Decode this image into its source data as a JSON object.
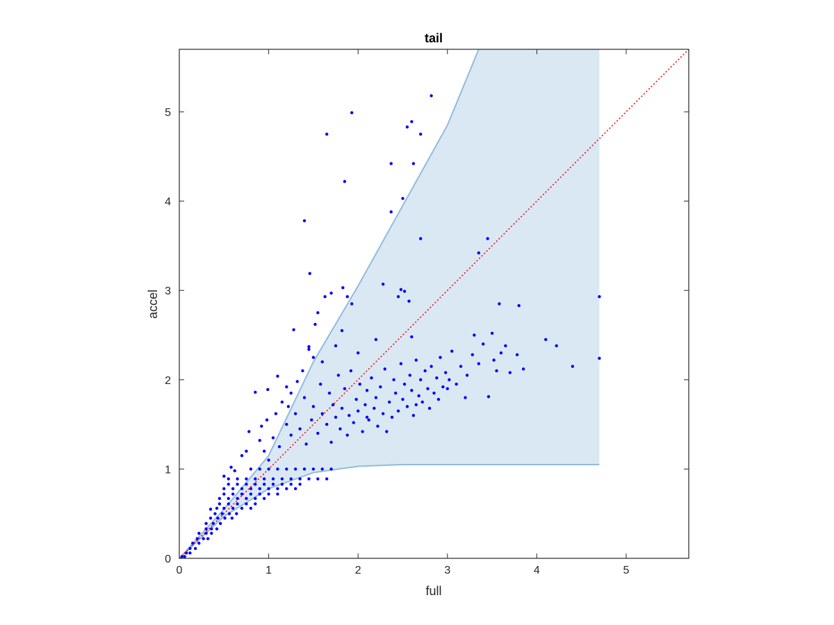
{
  "chart_data": {
    "type": "scatter",
    "title": "tail",
    "xlabel": "full",
    "ylabel": "accel",
    "xlim": [
      0,
      5.7
    ],
    "ylim": [
      0,
      5.7
    ],
    "xticks": [
      0,
      1,
      2,
      3,
      4,
      5
    ],
    "yticks": [
      0,
      1,
      2,
      3,
      4,
      5
    ],
    "grid": false,
    "colors": {
      "points": "#0000ff",
      "band_fill": "#dae8f3",
      "band_edge": "#8fbcdc",
      "reference_line": "#ff0000",
      "axes": "#262626"
    },
    "band": {
      "upper": [
        [
          0,
          0
        ],
        [
          0.5,
          0.55
        ],
        [
          1,
          1.15
        ],
        [
          1.5,
          2.2
        ],
        [
          2,
          3.05
        ],
        [
          2.5,
          3.95
        ],
        [
          3,
          4.85
        ],
        [
          3.35,
          5.7
        ],
        [
          4.7,
          5.7
        ]
      ],
      "lower": [
        [
          0,
          0
        ],
        [
          0.5,
          0.47
        ],
        [
          1,
          0.78
        ],
        [
          1.5,
          0.96
        ],
        [
          2,
          1.03
        ],
        [
          2.5,
          1.05
        ],
        [
          3,
          1.05
        ],
        [
          4.7,
          1.05
        ]
      ]
    },
    "reference_line": {
      "style": "dotted",
      "x": [
        0,
        5.7
      ],
      "y": [
        0,
        5.7
      ]
    },
    "series": [
      {
        "values": [
          [
            2.82,
            5.18
          ],
          [
            1.93,
            4.99
          ],
          [
            2.6,
            4.89
          ],
          [
            2.55,
            4.83
          ],
          [
            2.7,
            4.75
          ],
          [
            1.65,
            4.75
          ],
          [
            2.37,
            4.42
          ],
          [
            2.62,
            4.42
          ],
          [
            1.85,
            4.22
          ],
          [
            2.5,
            4.03
          ],
          [
            2.37,
            3.88
          ],
          [
            1.4,
            3.78
          ],
          [
            2.7,
            3.58
          ],
          [
            3.45,
            3.58
          ],
          [
            3.35,
            3.42
          ],
          [
            1.46,
            3.19
          ],
          [
            2.28,
            3.07
          ],
          [
            2.48,
            3.01
          ],
          [
            2.52,
            2.99
          ],
          [
            1.7,
            2.97
          ],
          [
            1.83,
            3.03
          ],
          [
            1.88,
            2.93
          ],
          [
            1.63,
            2.93
          ],
          [
            2.45,
            2.93
          ],
          [
            2.57,
            2.88
          ],
          [
            1.93,
            2.85
          ],
          [
            3.58,
            2.85
          ],
          [
            3.8,
            2.83
          ],
          [
            4.7,
            2.93
          ],
          [
            1.55,
            2.75
          ],
          [
            1.52,
            2.62
          ],
          [
            1.28,
            2.56
          ],
          [
            1.82,
            2.55
          ],
          [
            2.6,
            2.48
          ],
          [
            2.2,
            2.45
          ],
          [
            3.3,
            2.5
          ],
          [
            3.5,
            2.52
          ],
          [
            4.1,
            2.45
          ],
          [
            4.22,
            2.38
          ],
          [
            3.65,
            2.38
          ],
          [
            3.78,
            2.28
          ],
          [
            3.85,
            2.12
          ],
          [
            4.4,
            2.15
          ],
          [
            4.7,
            2.24
          ],
          [
            3.55,
            2.1
          ],
          [
            3.7,
            2.08
          ],
          [
            3.46,
            1.81
          ],
          [
            1.45,
            2.37
          ],
          [
            1.45,
            2.34
          ],
          [
            1.5,
            2.25
          ],
          [
            1.6,
            2.2
          ],
          [
            1.1,
            2.04
          ],
          [
            0.85,
            1.86
          ],
          [
            0.99,
            1.89
          ],
          [
            1.2,
            1.92
          ],
          [
            1.75,
            2.38
          ],
          [
            2.0,
            2.3
          ],
          [
            2.32,
            1.42
          ],
          [
            2.1,
            1.58
          ],
          [
            2.65,
            1.72
          ],
          [
            3.0,
            1.9
          ],
          [
            3.2,
            1.8
          ],
          [
            0.78,
            1.42
          ],
          [
            0.9,
            1.32
          ],
          [
            0.75,
            1.2
          ],
          [
            1.0,
            1.1
          ],
          [
            1.12,
            1.25
          ],
          [
            1.2,
            1.5
          ],
          [
            1.25,
            1.38
          ],
          [
            1.3,
            1.62
          ],
          [
            1.35,
            1.45
          ],
          [
            1.4,
            1.8
          ],
          [
            1.42,
            1.28
          ],
          [
            1.48,
            1.55
          ],
          [
            1.5,
            1.7
          ],
          [
            1.55,
            1.4
          ],
          [
            1.58,
            1.95
          ],
          [
            1.6,
            1.62
          ],
          [
            1.65,
            1.5
          ],
          [
            1.68,
            1.85
          ],
          [
            1.7,
            1.3
          ],
          [
            1.72,
            1.72
          ],
          [
            1.75,
            1.58
          ],
          [
            1.78,
            2.05
          ],
          [
            1.8,
            1.45
          ],
          [
            1.82,
            1.68
          ],
          [
            1.85,
            1.9
          ],
          [
            1.88,
            1.38
          ],
          [
            1.9,
            1.6
          ],
          [
            1.92,
            2.1
          ],
          [
            1.95,
            1.52
          ],
          [
            1.98,
            1.78
          ],
          [
            2.0,
            1.65
          ],
          [
            2.02,
            1.95
          ],
          [
            2.05,
            1.42
          ],
          [
            2.08,
            1.72
          ],
          [
            2.1,
            1.88
          ],
          [
            2.12,
            1.55
          ],
          [
            2.15,
            2.02
          ],
          [
            2.18,
            1.68
          ],
          [
            2.2,
            1.8
          ],
          [
            2.22,
            1.48
          ],
          [
            2.25,
            1.92
          ],
          [
            2.28,
            1.62
          ],
          [
            2.3,
            2.12
          ],
          [
            2.35,
            1.75
          ],
          [
            2.38,
            1.58
          ],
          [
            2.4,
            2.0
          ],
          [
            2.42,
            1.85
          ],
          [
            2.45,
            1.65
          ],
          [
            2.48,
            2.18
          ],
          [
            2.5,
            1.78
          ],
          [
            2.52,
            1.95
          ],
          [
            2.55,
            1.7
          ],
          [
            2.58,
            2.05
          ],
          [
            2.6,
            1.88
          ],
          [
            2.62,
            1.6
          ],
          [
            2.65,
            2.22
          ],
          [
            2.68,
            1.82
          ],
          [
            2.7,
            2.0
          ],
          [
            2.72,
            1.75
          ],
          [
            2.75,
            2.1
          ],
          [
            2.78,
            1.9
          ],
          [
            2.8,
            1.68
          ],
          [
            2.82,
            2.15
          ],
          [
            2.85,
            1.85
          ],
          [
            2.88,
            2.02
          ],
          [
            2.9,
            1.78
          ],
          [
            2.92,
            2.25
          ],
          [
            2.95,
            1.92
          ],
          [
            2.98,
            2.08
          ],
          [
            3.02,
            2.0
          ],
          [
            3.05,
            2.32
          ],
          [
            3.1,
            1.95
          ],
          [
            3.15,
            2.15
          ],
          [
            3.22,
            2.05
          ],
          [
            3.28,
            2.28
          ],
          [
            3.35,
            2.18
          ],
          [
            3.4,
            2.4
          ],
          [
            3.52,
            2.22
          ],
          [
            3.6,
            2.3
          ],
          [
            0.8,
            1.0
          ],
          [
            0.9,
            1.0
          ],
          [
            1.0,
            1.0
          ],
          [
            1.1,
            1.0
          ],
          [
            1.2,
            1.0
          ],
          [
            1.3,
            1.0
          ],
          [
            1.4,
            1.0
          ],
          [
            1.5,
            1.0
          ],
          [
            1.6,
            1.0
          ],
          [
            1.7,
            1.0
          ],
          [
            0.55,
            0.89
          ],
          [
            0.65,
            0.89
          ],
          [
            0.75,
            0.89
          ],
          [
            0.85,
            0.89
          ],
          [
            0.95,
            0.89
          ],
          [
            1.05,
            0.89
          ],
          [
            1.15,
            0.89
          ],
          [
            1.25,
            0.89
          ],
          [
            1.35,
            0.89
          ],
          [
            1.45,
            0.89
          ],
          [
            1.55,
            0.89
          ],
          [
            1.65,
            0.89
          ],
          [
            0.55,
            0.83
          ],
          [
            0.65,
            0.83
          ],
          [
            0.75,
            0.83
          ],
          [
            0.85,
            0.83
          ],
          [
            0.95,
            0.83
          ],
          [
            1.05,
            0.83
          ],
          [
            1.15,
            0.83
          ],
          [
            1.25,
            0.83
          ],
          [
            1.35,
            0.83
          ],
          [
            0.5,
            0.78
          ],
          [
            0.6,
            0.78
          ],
          [
            0.7,
            0.78
          ],
          [
            0.8,
            0.78
          ],
          [
            0.9,
            0.78
          ],
          [
            1.0,
            0.78
          ],
          [
            1.1,
            0.78
          ],
          [
            1.2,
            0.78
          ],
          [
            1.3,
            0.78
          ],
          [
            0.5,
            0.72
          ],
          [
            0.6,
            0.72
          ],
          [
            0.7,
            0.72
          ],
          [
            0.8,
            0.72
          ],
          [
            0.9,
            0.72
          ],
          [
            1.0,
            0.72
          ],
          [
            1.1,
            0.72
          ],
          [
            0.45,
            0.67
          ],
          [
            0.55,
            0.67
          ],
          [
            0.65,
            0.67
          ],
          [
            0.75,
            0.67
          ],
          [
            0.85,
            0.67
          ],
          [
            0.95,
            0.67
          ],
          [
            0.45,
            0.61
          ],
          [
            0.55,
            0.61
          ],
          [
            0.65,
            0.61
          ],
          [
            0.75,
            0.61
          ],
          [
            0.85,
            0.61
          ],
          [
            0.42,
            0.56
          ],
          [
            0.5,
            0.56
          ],
          [
            0.6,
            0.56
          ],
          [
            0.7,
            0.56
          ],
          [
            0.8,
            0.56
          ],
          [
            0.4,
            0.5
          ],
          [
            0.48,
            0.5
          ],
          [
            0.56,
            0.5
          ],
          [
            0.64,
            0.5
          ],
          [
            0.35,
            0.45
          ],
          [
            0.43,
            0.45
          ],
          [
            0.51,
            0.45
          ],
          [
            0.59,
            0.45
          ],
          [
            0.3,
            0.39
          ],
          [
            0.38,
            0.39
          ],
          [
            0.46,
            0.39
          ],
          [
            0.3,
            0.33
          ],
          [
            0.36,
            0.33
          ],
          [
            0.42,
            0.33
          ],
          [
            0.22,
            0.28
          ],
          [
            0.3,
            0.28
          ],
          [
            0.36,
            0.28
          ],
          [
            0.2,
            0.22
          ],
          [
            0.27,
            0.22
          ],
          [
            0.32,
            0.22
          ],
          [
            0.15,
            0.17
          ],
          [
            0.22,
            0.17
          ],
          [
            0.12,
            0.11
          ],
          [
            0.18,
            0.11
          ],
          [
            0.08,
            0.06
          ],
          [
            0.12,
            0.06
          ],
          [
            0.03,
            0.02
          ],
          [
            0.06,
            0.02
          ],
          [
            0.35,
            0.55
          ],
          [
            0.5,
            0.92
          ],
          [
            0.58,
            1.02
          ],
          [
            0.7,
            1.15
          ],
          [
            0.62,
            0.98
          ],
          [
            0.95,
            1.2
          ],
          [
            1.05,
            1.35
          ],
          [
            0.98,
            1.55
          ],
          [
            1.08,
            1.62
          ],
          [
            0.92,
            1.48
          ],
          [
            1.15,
            1.75
          ],
          [
            1.25,
            1.85
          ],
          [
            1.32,
            1.98
          ],
          [
            1.38,
            2.1
          ],
          [
            1.22,
            1.7
          ]
        ]
      }
    ]
  }
}
